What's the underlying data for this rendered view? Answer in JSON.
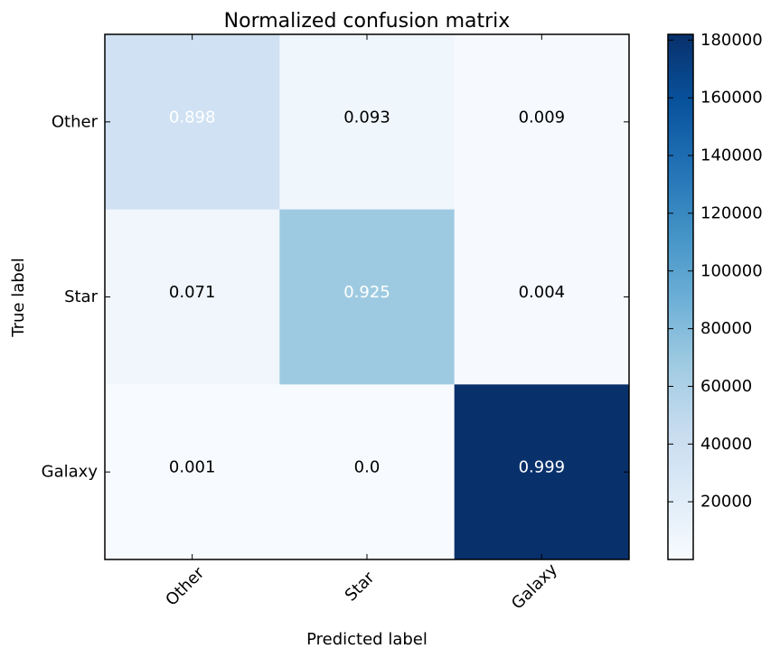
{
  "chart_data": {
    "type": "heatmap",
    "title": "Normalized confusion matrix",
    "xlabel": "Predicted label",
    "ylabel": "True label",
    "x_categories": [
      "Other",
      "Star",
      "Galaxy"
    ],
    "y_categories": [
      "Other",
      "Star",
      "Galaxy"
    ],
    "cell_labels": [
      [
        "0.898",
        "0.093",
        "0.009"
      ],
      [
        "0.071",
        "0.925",
        "0.004"
      ],
      [
        "0.001",
        "0.0",
        "0.999"
      ]
    ],
    "cell_colors": [
      [
        "#cfe1f2",
        "#eff6fc",
        "#f6faff"
      ],
      [
        "#f0f6fc",
        "#9ecae1",
        "#f6faff"
      ],
      [
        "#f7fbff",
        "#f7fbff",
        "#08306b"
      ]
    ],
    "cell_text_colors": [
      [
        "#ffffff",
        "#000000",
        "#000000"
      ],
      [
        "#000000",
        "#ffffff",
        "#000000"
      ],
      [
        "#000000",
        "#000000",
        "#ffffff"
      ]
    ],
    "colorbar": {
      "range": [
        0,
        182000
      ],
      "ticks": [
        20000,
        40000,
        60000,
        80000,
        100000,
        120000,
        140000,
        160000,
        180000
      ],
      "tick_labels": [
        "20000",
        "40000",
        "60000",
        "80000",
        "100000",
        "120000",
        "140000",
        "160000",
        "180000"
      ],
      "colormap": "Blues",
      "color_low": "#f7fbff",
      "color_high": "#08306b"
    },
    "grid": false
  }
}
